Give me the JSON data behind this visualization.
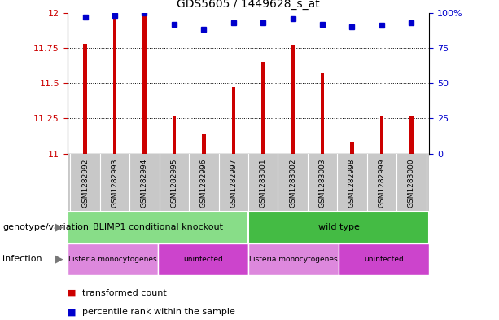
{
  "title": "GDS5605 / 1449628_s_at",
  "samples": [
    "GSM1282992",
    "GSM1282993",
    "GSM1282994",
    "GSM1282995",
    "GSM1282996",
    "GSM1282997",
    "GSM1283001",
    "GSM1283002",
    "GSM1283003",
    "GSM1282998",
    "GSM1282999",
    "GSM1283000"
  ],
  "bar_values": [
    11.78,
    11.97,
    11.99,
    11.27,
    11.14,
    11.47,
    11.65,
    11.77,
    11.57,
    11.08,
    11.27,
    11.27
  ],
  "dot_values": [
    97,
    98,
    100,
    92,
    88,
    93,
    93,
    96,
    92,
    90,
    91,
    93
  ],
  "ylim_left": [
    11,
    12
  ],
  "ylim_right": [
    0,
    100
  ],
  "yticks_left": [
    11,
    11.25,
    11.5,
    11.75,
    12
  ],
  "yticks_right": [
    0,
    25,
    50,
    75,
    100
  ],
  "bar_color": "#cc0000",
  "dot_color": "#0000cc",
  "bar_width": 0.12,
  "background_xlabels": "#c8c8c8",
  "genotype_groups": [
    {
      "label": "BLIMP1 conditional knockout",
      "start": 0,
      "end": 6,
      "color": "#88dd88"
    },
    {
      "label": "wild type",
      "start": 6,
      "end": 12,
      "color": "#44bb44"
    }
  ],
  "infection_groups": [
    {
      "label": "Listeria monocytogenes",
      "start": 0,
      "end": 3,
      "color": "#dd88dd"
    },
    {
      "label": "uninfected",
      "start": 3,
      "end": 6,
      "color": "#cc44cc"
    },
    {
      "label": "Listeria monocytogenes",
      "start": 6,
      "end": 9,
      "color": "#dd88dd"
    },
    {
      "label": "uninfected",
      "start": 9,
      "end": 12,
      "color": "#cc44cc"
    }
  ],
  "legend_items": [
    {
      "label": "transformed count",
      "color": "#cc0000"
    },
    {
      "label": "percentile rank within the sample",
      "color": "#0000cc"
    }
  ],
  "left_axis_color": "#cc0000",
  "right_axis_color": "#0000cc",
  "genotype_label": "genotype/variation",
  "infection_label": "infection",
  "grid_yticks": [
    11.25,
    11.5,
    11.75
  ]
}
